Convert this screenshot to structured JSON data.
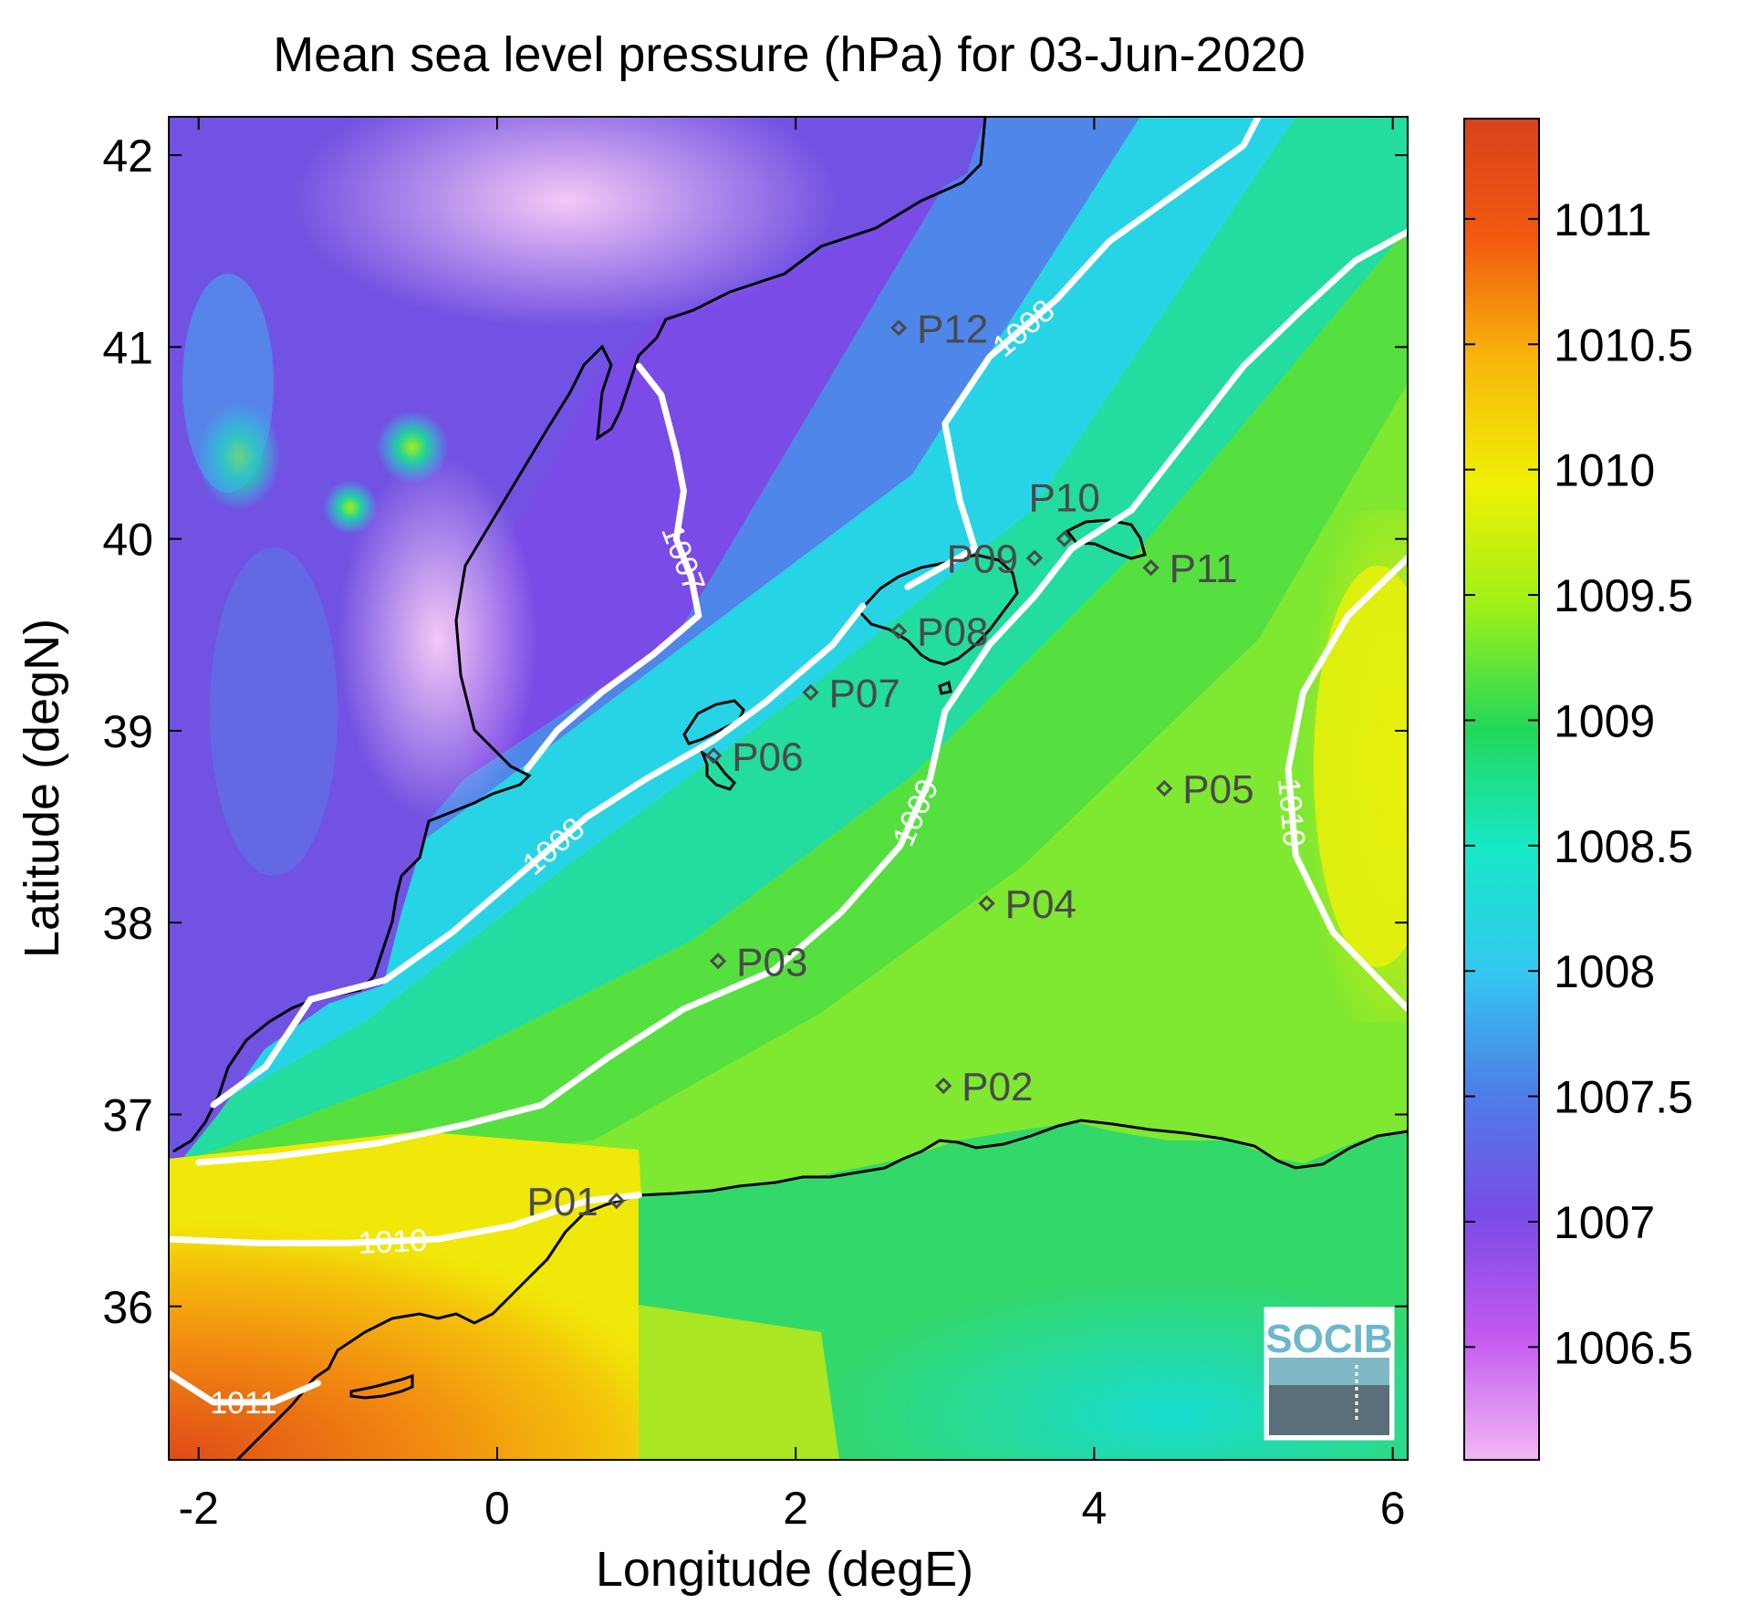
{
  "title": "Mean sea level pressure (hPa) for 03-Jun-2020",
  "xlabel": "Longitude (degE)",
  "ylabel": "Latitude (degN)",
  "chart_data": {
    "type": "heatmap",
    "title": "Mean sea level pressure (hPa) for 03-Jun-2020",
    "xlabel": "Longitude (degE)",
    "ylabel": "Latitude (degN)",
    "xlim": [
      -2.2,
      6.1
    ],
    "ylim": [
      35.2,
      42.2
    ],
    "x_ticks": [
      -2,
      0,
      2,
      4,
      6
    ],
    "y_ticks": [
      36,
      37,
      38,
      39,
      40,
      41,
      42
    ],
    "colorbar": {
      "range": [
        1006.05,
        1011.4
      ],
      "ticks": [
        1006.5,
        1007,
        1007.5,
        1008,
        1008.5,
        1009,
        1009.5,
        1010,
        1010.5,
        1011
      ],
      "colors": [
        "#f2b8f4",
        "#c45af0",
        "#7a4be6",
        "#4d7ee8",
        "#33c8f0",
        "#18e8c8",
        "#22d85a",
        "#9ef018",
        "#f0f005",
        "#f7b90c",
        "#f25a10",
        "#d8421a"
      ]
    },
    "contours": [
      {
        "label": "1007",
        "points": [
          [
            0.95,
            40.9
          ],
          [
            1.1,
            40.75
          ],
          [
            1.2,
            40.45
          ],
          [
            1.25,
            40.25
          ],
          [
            1.2,
            40.0
          ],
          [
            1.3,
            39.8
          ],
          [
            1.35,
            39.6
          ],
          [
            1.05,
            39.4
          ],
          [
            0.7,
            39.2
          ],
          [
            0.4,
            39.0
          ],
          [
            0.2,
            38.8
          ]
        ]
      },
      {
        "label": "1008",
        "points": [
          [
            -1.9,
            37.05
          ],
          [
            -1.55,
            37.25
          ],
          [
            -1.25,
            37.6
          ],
          [
            -0.75,
            37.7
          ],
          [
            -0.3,
            37.95
          ],
          [
            0.15,
            38.25
          ],
          [
            0.6,
            38.55
          ],
          [
            1.0,
            38.75
          ],
          [
            1.45,
            38.95
          ],
          [
            1.8,
            39.15
          ],
          [
            2.25,
            39.45
          ],
          [
            2.45,
            39.65
          ]
        ]
      },
      {
        "label": "1008",
        "points": [
          [
            2.75,
            39.75
          ],
          [
            3.2,
            39.95
          ],
          [
            3.1,
            40.2
          ],
          [
            3.0,
            40.6
          ],
          [
            3.3,
            40.95
          ],
          [
            3.75,
            41.25
          ],
          [
            4.1,
            41.55
          ],
          [
            4.55,
            41.8
          ],
          [
            5.0,
            42.05
          ],
          [
            5.1,
            42.2
          ]
        ]
      },
      {
        "label": "1009",
        "points": [
          [
            -2.0,
            36.75
          ],
          [
            -1.5,
            36.78
          ],
          [
            -0.8,
            36.85
          ],
          [
            -0.2,
            36.95
          ],
          [
            0.3,
            37.05
          ],
          [
            0.75,
            37.3
          ],
          [
            1.25,
            37.55
          ],
          [
            1.85,
            37.75
          ],
          [
            2.3,
            38.05
          ],
          [
            2.7,
            38.4
          ],
          [
            2.9,
            38.75
          ],
          [
            3.0,
            39.1
          ],
          [
            3.3,
            39.45
          ],
          [
            3.6,
            39.7
          ],
          [
            3.85,
            39.95
          ],
          [
            4.25,
            40.15
          ],
          [
            4.65,
            40.55
          ],
          [
            5.0,
            40.9
          ],
          [
            5.4,
            41.2
          ],
          [
            5.75,
            41.45
          ],
          [
            6.1,
            41.6
          ]
        ]
      },
      {
        "label": "1010",
        "points": [
          [
            -2.2,
            36.35
          ],
          [
            -1.6,
            36.33
          ],
          [
            -1.0,
            36.33
          ],
          [
            -0.4,
            36.35
          ],
          [
            0.1,
            36.42
          ],
          [
            0.6,
            36.55
          ],
          [
            0.95,
            36.58
          ]
        ]
      },
      {
        "label": "1010",
        "points": [
          [
            6.1,
            39.9
          ],
          [
            5.7,
            39.6
          ],
          [
            5.4,
            39.2
          ],
          [
            5.3,
            38.8
          ],
          [
            5.35,
            38.35
          ],
          [
            5.6,
            37.95
          ],
          [
            5.85,
            37.75
          ],
          [
            6.1,
            37.55
          ]
        ]
      },
      {
        "label": "1011",
        "points": [
          [
            -2.2,
            35.65
          ],
          [
            -1.9,
            35.5
          ],
          [
            -1.5,
            35.5
          ],
          [
            -1.2,
            35.6
          ]
        ]
      }
    ],
    "stations": [
      {
        "label": "P01",
        "lon": 0.8,
        "lat": 36.55
      },
      {
        "label": "P02",
        "lon": 2.99,
        "lat": 37.15
      },
      {
        "label": "P03",
        "lon": 1.48,
        "lat": 37.8
      },
      {
        "label": "P04",
        "lon": 3.28,
        "lat": 38.1
      },
      {
        "label": "P05",
        "lon": 4.47,
        "lat": 38.7
      },
      {
        "label": "P06",
        "lon": 1.45,
        "lat": 38.87
      },
      {
        "label": "P07",
        "lon": 2.1,
        "lat": 39.2
      },
      {
        "label": "P08",
        "lon": 2.69,
        "lat": 39.52
      },
      {
        "label": "P09",
        "lon": 3.6,
        "lat": 39.9
      },
      {
        "label": "P10",
        "lon": 3.8,
        "lat": 40.0
      },
      {
        "label": "P11",
        "lon": 4.38,
        "lat": 39.85
      },
      {
        "label": "P12",
        "lon": 2.69,
        "lat": 41.1
      }
    ]
  },
  "logo": {
    "text": "SOCIB"
  }
}
